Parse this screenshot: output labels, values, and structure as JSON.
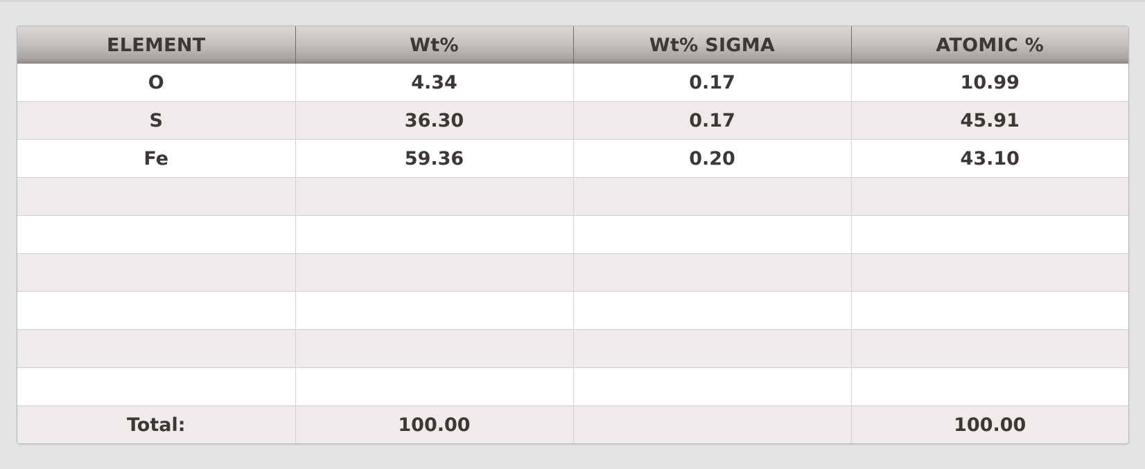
{
  "table": {
    "headers": [
      "ELEMENT",
      "Wt%",
      "Wt% SIGMA",
      "ATOMIC %"
    ],
    "rows": [
      [
        "O",
        "4.34",
        "0.17",
        "10.99"
      ],
      [
        "S",
        "36.30",
        "0.17",
        "45.91"
      ],
      [
        "Fe",
        "59.36",
        "0.20",
        "43.10"
      ],
      [
        "",
        "",
        "",
        ""
      ],
      [
        "",
        "",
        "",
        ""
      ],
      [
        "",
        "",
        "",
        ""
      ],
      [
        "",
        "",
        "",
        ""
      ],
      [
        "",
        "",
        "",
        ""
      ],
      [
        "",
        "",
        "",
        ""
      ],
      [
        "Total:",
        "100.00",
        "",
        "100.00"
      ]
    ]
  },
  "colors": {
    "header_gradient_top": "#dad7d5",
    "header_gradient_bottom": "#8e8986",
    "row_odd": "#ffffff",
    "row_even": "#eeebea",
    "text": "#3d3836"
  }
}
